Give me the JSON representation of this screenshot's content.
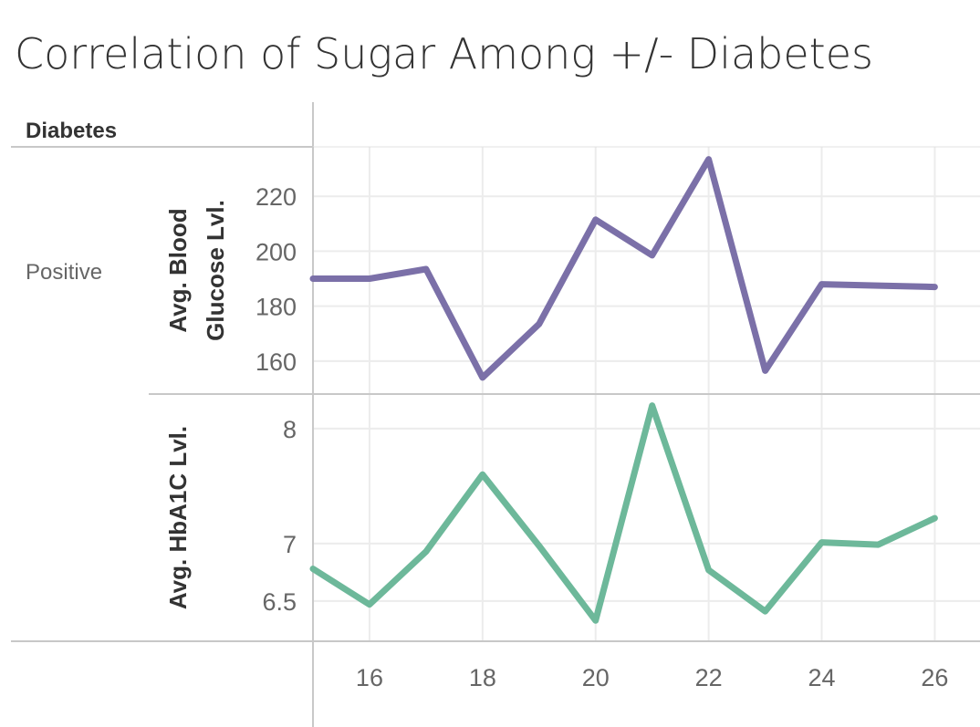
{
  "chart_data": {
    "type": "line",
    "title": "Correlation of Sugar Among +/- Diabetes",
    "row_header": "Diabetes",
    "row_label": "Positive",
    "x": [
      15,
      16,
      17,
      18,
      19,
      20,
      21,
      22,
      23,
      24,
      25,
      26
    ],
    "x_ticks": [
      "16",
      "18",
      "20",
      "22",
      "24",
      "26"
    ],
    "xlim": [
      15,
      26.8
    ],
    "panels": [
      {
        "ylabel": "Avg. Blood Glucose Lvl.",
        "ylim": [
          148,
          238
        ],
        "y_ticks": [
          "160",
          "180",
          "200",
          "220"
        ],
        "color": "#7b70a8",
        "values": [
          190,
          190,
          193.5,
          154,
          173.5,
          211.5,
          198.5,
          233.5,
          156.5,
          188,
          187.5,
          187
        ]
      },
      {
        "ylabel": "Avg. HbA1C Lvl.",
        "ylim": [
          6.15,
          8.3
        ],
        "y_ticks": [
          "6.5",
          "7",
          "8"
        ],
        "color": "#6db89a",
        "values": [
          6.78,
          6.47,
          6.93,
          7.6,
          6.98,
          6.33,
          8.2,
          6.77,
          6.41,
          7.01,
          6.99,
          7.22
        ]
      }
    ]
  }
}
